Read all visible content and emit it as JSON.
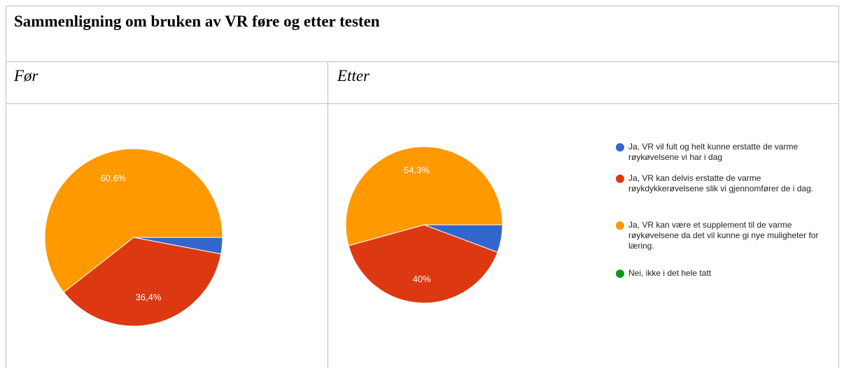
{
  "table": {
    "title": "Sammenligning om bruken av VR føre og etter testen",
    "headers": [
      "Før",
      "Etter"
    ]
  },
  "legend": {
    "labels": [
      "Ja, VR vil fult og helt kunne erstatte de varme røykøvelsene vi har i dag",
      "Ja, VR kan delvis erstatte de varme røykdykkerøvelsene slik vi gjennomfører de i dag.",
      "Ja, VR kan være et supplement til de varme røykøvelsene da det vil kunne gi nye muligheter for læring.",
      "Nei, ikke i det hele tatt"
    ],
    "colors": [
      "#3366cc",
      "#dc3912",
      "#ff9900",
      "#109618"
    ]
  },
  "chart_data": [
    {
      "type": "pie",
      "values": [
        3.0,
        36.4,
        60.6,
        0
      ],
      "value_labels": [
        null,
        "36,4%",
        "60,6%",
        null
      ]
    },
    {
      "type": "pie",
      "values": [
        5.7,
        40,
        54.3,
        0
      ],
      "value_labels": [
        null,
        "40%",
        "54,3%",
        null
      ]
    }
  ]
}
